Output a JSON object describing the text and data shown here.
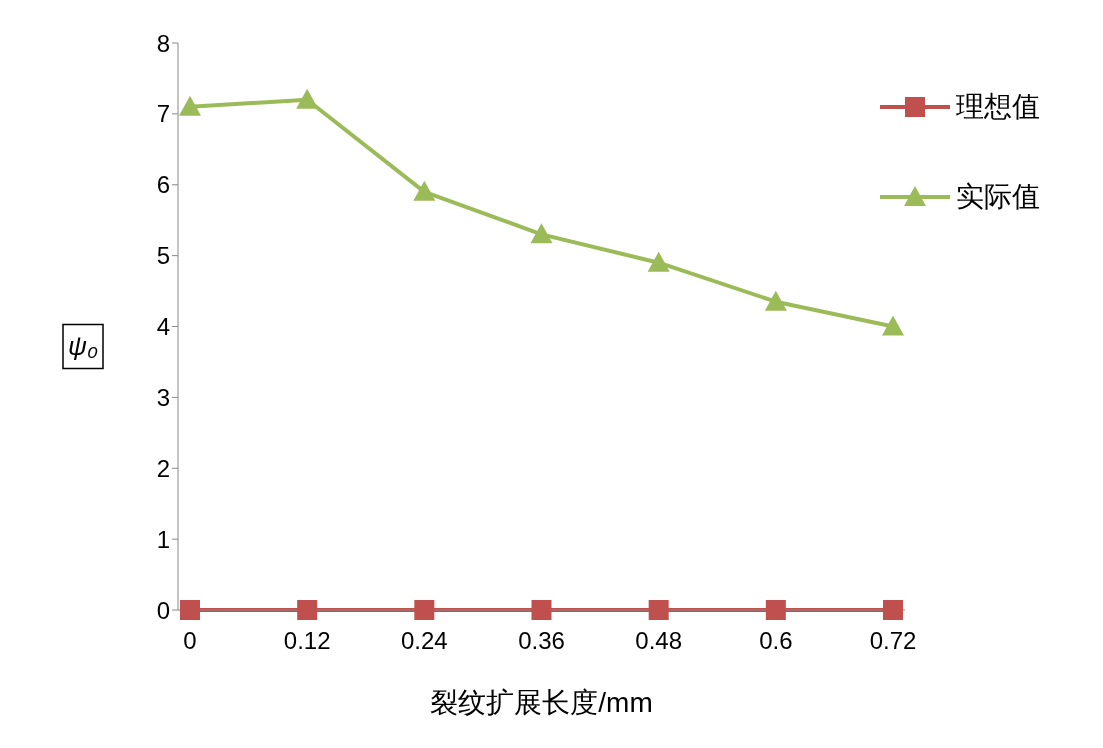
{
  "chart_data": {
    "type": "line",
    "xlabel": "裂纹扩展长度/mm",
    "ylabel": "ψ₀",
    "categories": [
      "0",
      "0.12",
      "0.24",
      "0.36",
      "0.48",
      "0.6",
      "0.72"
    ],
    "series": [
      {
        "name": "理想值",
        "color": "#c0504d",
        "marker": "square",
        "values": [
          0,
          0,
          0,
          0,
          0,
          0,
          0
        ]
      },
      {
        "name": "实际值",
        "color": "#9bbb59",
        "marker": "triangle",
        "values": [
          7.1,
          7.2,
          5.9,
          5.3,
          4.9,
          4.35,
          4.0
        ]
      }
    ],
    "ylim": [
      0,
      8
    ],
    "yticks": [
      0,
      1,
      2,
      3,
      4,
      5,
      6,
      7,
      8
    ],
    "grid": false,
    "legend": "top right",
    "line_style": "solid"
  }
}
